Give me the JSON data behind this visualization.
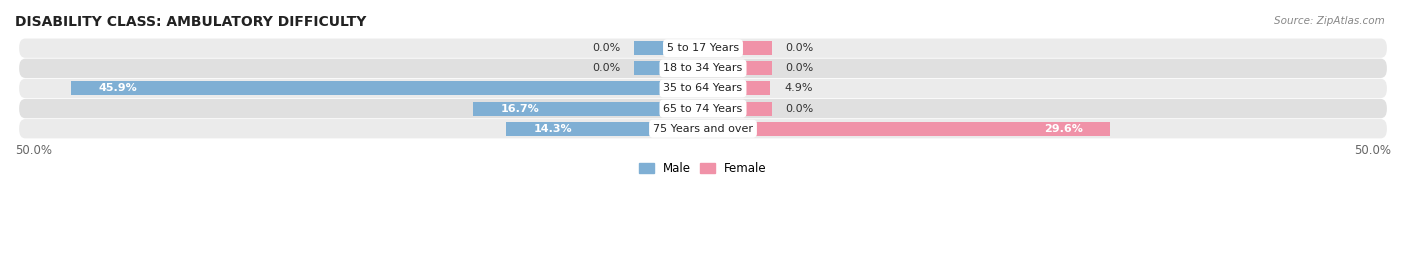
{
  "title": "DISABILITY CLASS: AMBULATORY DIFFICULTY",
  "source": "Source: ZipAtlas.com",
  "categories": [
    "5 to 17 Years",
    "18 to 34 Years",
    "35 to 64 Years",
    "65 to 74 Years",
    "75 Years and over"
  ],
  "male_values": [
    0.0,
    0.0,
    45.9,
    16.7,
    14.3
  ],
  "female_values": [
    0.0,
    0.0,
    4.9,
    0.0,
    29.6
  ],
  "x_max": 50.0,
  "x_min": -50.0,
  "male_color": "#7fafd4",
  "female_color": "#f092a8",
  "row_bg_colors": [
    "#ebebeb",
    "#e0e0e0"
  ],
  "label_color": "#333333",
  "title_color": "#222222",
  "axis_label_color": "#666666",
  "zero_bar_width": 5.0
}
